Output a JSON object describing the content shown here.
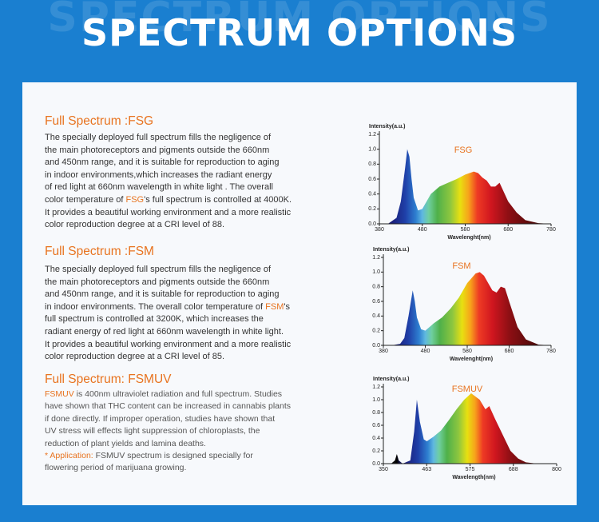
{
  "header": {
    "title": "SPECTRUM OPTIONS"
  },
  "sections": [
    {
      "heading": "Full Spectrum :FSG",
      "lines": [
        "The specially deployed full spectrum  fills the negligence of",
        "the main photoreceptors and pigments outside the 660nm",
        "and 450nm range, and it is suitable for reproduction to aging",
        "in indoor environments,which increases the radiant energy",
        "of red light at 660nm wavelength in white light . The overall",
        [
          "color temperature of ",
          {
            "text": "FSG",
            "color": "#e8731f"
          },
          "'s full spectrum is controlled at 4000K."
        ],
        "It provides a beautiful working environment and a more realistic",
        "color reproduction degree at a CRI level of 88."
      ]
    },
    {
      "heading": "Full Spectrum :FSM",
      "lines": [
        "The specially deployed full  spectrum fills the negligence of",
        "the main photoreceptors and pigments outside the 660nm",
        "and 450nm range, and it is suitable for reproduction to aging",
        [
          "in indoor environments. The overall color temperature of ",
          {
            "text": "FSM",
            "color": "#e8731f"
          },
          "'s"
        ],
        "full spectrum is controlled at 3200K, which increases the",
        "radiant energy of red light at 660nm wavelength in white light.",
        "It provides a beautiful working environment and a more realistic",
        "color reproduction degree at a CRI level of 85."
      ]
    },
    {
      "heading": "Full Spectrum: FSMUV",
      "lines": [
        [
          {
            "text": "FSMUV",
            "color": "#e8731f"
          },
          " is 400nm ultraviolet radiation and full spectrum. Studies"
        ],
        "have shown that THC content can be increased in cannabis plants",
        "if done directly. If improper operation, studies have shown that",
        "UV stress will effects light suppression of chloroplasts, the",
        "reduction of plant yields and lamina deaths.",
        [
          {
            "text": "* Application: ",
            "color": "#e8731f"
          },
          "FSMUV spectrum is designed specially for"
        ],
        "flowering period of marijuana growing."
      ]
    }
  ],
  "chart_data": [
    {
      "type": "area",
      "y_label": "Intensity(a.u.)",
      "x_label": "Wavelenght(nm)",
      "x": [
        380,
        400,
        420,
        430,
        440,
        445,
        450,
        455,
        460,
        470,
        480,
        490,
        500,
        520,
        540,
        560,
        580,
        600,
        610,
        620,
        630,
        640,
        650,
        660,
        680,
        700,
        720,
        750,
        780
      ],
      "series": [
        {
          "name": "FSG",
          "color": "#e8731f",
          "values": [
            0,
            0,
            0.08,
            0.3,
            0.75,
            1.0,
            0.9,
            0.6,
            0.35,
            0.18,
            0.2,
            0.3,
            0.4,
            0.5,
            0.55,
            0.6,
            0.66,
            0.7,
            0.68,
            0.62,
            0.58,
            0.5,
            0.5,
            0.55,
            0.3,
            0.15,
            0.05,
            0.01,
            0
          ]
        }
      ],
      "xlim": [
        380,
        780
      ],
      "xticks": [
        380,
        480,
        580,
        680,
        780
      ],
      "ylim": [
        0,
        1.2
      ],
      "yticks": [
        {
          "value": 0,
          "label": "0.0"
        },
        {
          "value": 0.2,
          "label": "0.2"
        },
        {
          "value": 0.4,
          "label": "0.4"
        },
        {
          "value": 0.6,
          "label": "0.6"
        },
        {
          "value": 0.8,
          "label": "0.8"
        },
        {
          "value": 1.0,
          "label": "1.0"
        },
        {
          "value": 1.2,
          "label": "1.2"
        }
      ]
    },
    {
      "type": "area",
      "y_label": "Intensity(a.u.)",
      "x_label": "Wavelenght(nm)",
      "x": [
        380,
        400,
        420,
        430,
        440,
        450,
        455,
        460,
        470,
        480,
        490,
        500,
        520,
        540,
        560,
        580,
        600,
        610,
        620,
        630,
        640,
        650,
        660,
        670,
        680,
        700,
        720,
        750,
        780
      ],
      "series": [
        {
          "name": "FSM",
          "color": "#e8731f",
          "values": [
            0,
            0,
            0.02,
            0.1,
            0.4,
            0.75,
            0.6,
            0.38,
            0.22,
            0.2,
            0.25,
            0.3,
            0.38,
            0.5,
            0.65,
            0.85,
            0.98,
            1.0,
            0.95,
            0.85,
            0.75,
            0.72,
            0.8,
            0.78,
            0.6,
            0.25,
            0.08,
            0.01,
            0
          ]
        }
      ],
      "xlim": [
        380,
        780
      ],
      "xticks": [
        380,
        480,
        580,
        680,
        780
      ],
      "ylim": [
        0,
        1.2
      ],
      "yticks": [
        {
          "value": 0,
          "label": "0.0"
        },
        {
          "value": 0.2,
          "label": "0.2"
        },
        {
          "value": 0.4,
          "label": "0.4"
        },
        {
          "value": 0.6,
          "label": "0.6"
        },
        {
          "value": 0.8,
          "label": "0.8"
        },
        {
          "value": 1.0,
          "label": "1.0"
        },
        {
          "value": 1.2,
          "label": "1.2"
        }
      ]
    },
    {
      "type": "area",
      "y_label": "Intensity(a.u.)",
      "x_label": "Wavelength(nm)",
      "x": [
        350,
        370,
        380,
        385,
        390,
        400,
        420,
        430,
        437,
        445,
        455,
        463,
        480,
        500,
        520,
        540,
        560,
        578,
        600,
        615,
        625,
        640,
        660,
        680,
        700,
        720,
        750,
        800
      ],
      "series": [
        {
          "name": "FSMUV",
          "color": "#e8731f",
          "values": [
            0,
            0,
            0.05,
            0.15,
            0.05,
            0,
            0.05,
            0.5,
            1.0,
            0.65,
            0.38,
            0.35,
            0.42,
            0.52,
            0.68,
            0.85,
            1.0,
            1.1,
            1.0,
            0.85,
            0.9,
            0.7,
            0.45,
            0.2,
            0.08,
            0.02,
            0,
            0
          ]
        }
      ],
      "xlim": [
        350,
        800
      ],
      "xticks": [
        350,
        {
          "value": 462.5,
          "label": "463"
        },
        575,
        {
          "value": 687.5,
          "label": "688"
        },
        800
      ],
      "ylim": [
        0,
        1.2
      ],
      "yticks": [
        {
          "value": 0,
          "label": "0.0"
        },
        {
          "value": 0.2,
          "label": "0.2"
        },
        {
          "value": 0.4,
          "label": "0.4"
        },
        {
          "value": 0.6,
          "label": "0.6"
        },
        {
          "value": 0.8,
          "label": "0.8"
        },
        {
          "value": 1.0,
          "label": "1.0"
        },
        {
          "value": 1.2,
          "label": "1.2"
        }
      ]
    }
  ]
}
